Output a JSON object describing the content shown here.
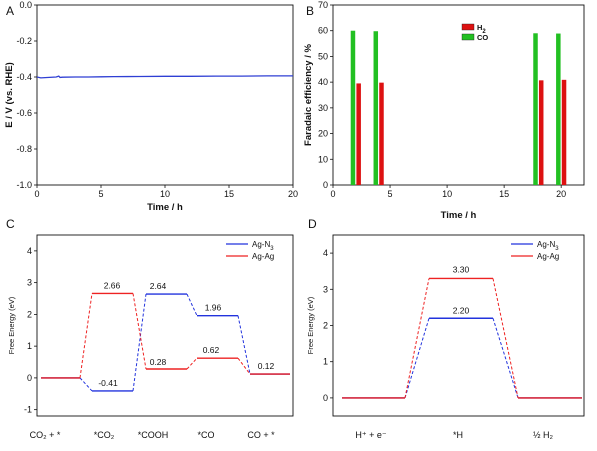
{
  "panel_labels": [
    "A",
    "B",
    "C",
    "D"
  ],
  "chart_data": [
    {
      "panel": "A",
      "type": "line",
      "xlabel": "Time / h",
      "ylabel": "E / V (vs. RHE)",
      "xlim": [
        0,
        20
      ],
      "ylim": [
        -1.0,
        0.0
      ],
      "xticks": [
        "0",
        "5",
        "10",
        "15",
        "20"
      ],
      "yticks": [
        "0.0",
        "-0.2",
        "-0.4",
        "-0.6",
        "-0.8",
        "-1.0"
      ],
      "series": [
        {
          "color": "#2f3fd4",
          "x": [
            0,
            0.3,
            0.8,
            1.5,
            1.7,
            1.8,
            2,
            3,
            4,
            5,
            6,
            8,
            10,
            12,
            14,
            16,
            18,
            20
          ],
          "y": [
            -0.4,
            -0.405,
            -0.403,
            -0.4,
            -0.395,
            -0.402,
            -0.401,
            -0.4,
            -0.4,
            -0.399,
            -0.398,
            -0.397,
            -0.396,
            -0.396,
            -0.395,
            -0.395,
            -0.394,
            -0.394
          ]
        }
      ]
    },
    {
      "panel": "B",
      "type": "bar",
      "xlabel": "Time / h",
      "ylabel": "Faradaic efficiency / %",
      "xlim": [
        0,
        22
      ],
      "ylim": [
        0,
        70
      ],
      "xticks": [
        "0",
        "5",
        "10",
        "15",
        "20"
      ],
      "yticks": [
        "0",
        "10",
        "20",
        "30",
        "40",
        "50",
        "60",
        "70"
      ],
      "legend": {
        "position": "top-right",
        "entries": [
          "H",
          "CO"
        ],
        "subscripts": [
          "2",
          ""
        ]
      },
      "series": [
        {
          "name": "CO",
          "color": "#22c022",
          "x": [
            1.75,
            3.75,
            17.75,
            19.75
          ],
          "values": [
            60,
            59.8,
            59,
            58.9
          ]
        },
        {
          "name": "H2",
          "color": "#dd1111",
          "x": [
            2.25,
            4.25,
            18.25,
            20.25
          ],
          "values": [
            39.5,
            39.8,
            40.7,
            40.9
          ]
        }
      ]
    },
    {
      "panel": "C",
      "type": "line",
      "xlabel": "",
      "ylabel": "Free Energy (eV)",
      "ylim": [
        -1.2,
        4.5
      ],
      "yticks": [
        "-1",
        "0",
        "1",
        "2",
        "3",
        "4"
      ],
      "categories": [
        "CO₂ + *",
        "*CO₂",
        "*COOH",
        "*CO",
        "CO + *"
      ],
      "legend": {
        "position": "top-right",
        "entries": [
          "Ag-N",
          "Ag-Ag"
        ],
        "subscripts": [
          "3",
          ""
        ]
      },
      "series": [
        {
          "name": "Ag-N3",
          "color": "#2233dd",
          "values": [
            0,
            -0.41,
            2.64,
            1.96,
            0.12
          ]
        },
        {
          "name": "Ag-Ag",
          "color": "#ee2222",
          "values": [
            0,
            2.66,
            0.28,
            0.62,
            0.12
          ]
        }
      ],
      "data_labels": [
        "2.66",
        "2.64",
        "1.96",
        "0.28",
        "0.62",
        "0.12",
        "-0.41"
      ]
    },
    {
      "panel": "D",
      "type": "line",
      "xlabel": "",
      "ylabel": "Free Energy (eV)",
      "ylim": [
        -0.5,
        4.5
      ],
      "yticks": [
        "0",
        "1",
        "2",
        "3",
        "4"
      ],
      "categories": [
        "H⁺ + e⁻",
        "*H",
        "½ H₂"
      ],
      "legend": {
        "position": "top-right",
        "entries": [
          "Ag-N",
          "Ag-Ag"
        ],
        "subscripts": [
          "3",
          ""
        ]
      },
      "series": [
        {
          "name": "Ag-N3",
          "color": "#2233dd",
          "values": [
            0,
            2.2,
            0
          ]
        },
        {
          "name": "Ag-Ag",
          "color": "#ee2222",
          "values": [
            0,
            3.3,
            0
          ]
        }
      ],
      "data_labels": [
        "3.30",
        "2.20"
      ]
    }
  ]
}
